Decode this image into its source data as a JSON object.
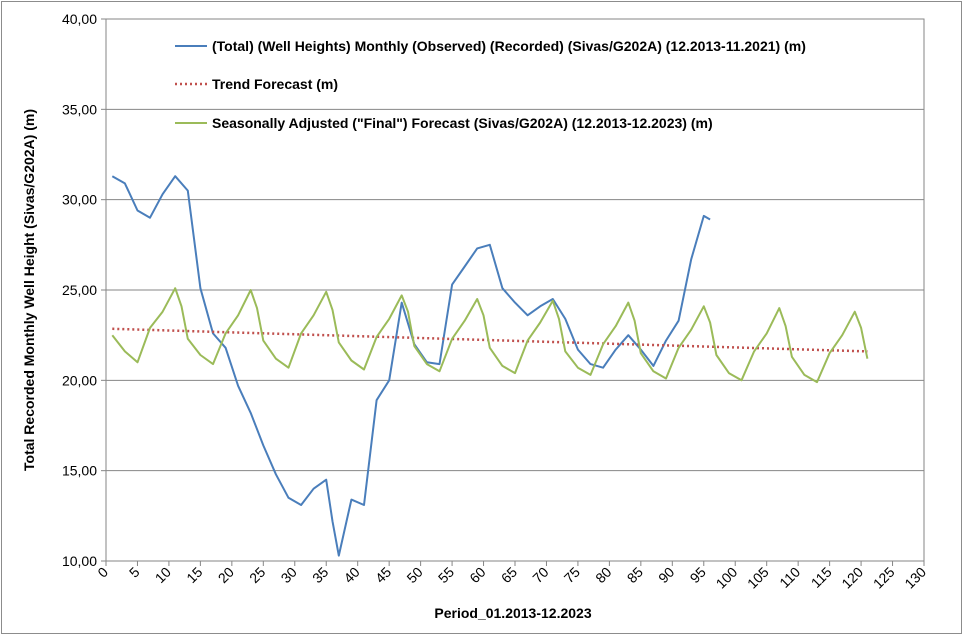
{
  "chart_data": {
    "type": "line",
    "title": "",
    "xlabel": "Period_01.2013-12.2023",
    "ylabel": "Total Recorded Monthly Well Height (Sivas/G202A) (m)",
    "xlim": [
      0,
      130
    ],
    "ylim": [
      10,
      40
    ],
    "x_ticks": [
      "0",
      "5",
      "10",
      "15",
      "20",
      "25",
      "30",
      "35",
      "40",
      "45",
      "50",
      "55",
      "60",
      "65",
      "70",
      "75",
      "80",
      "85",
      "90",
      "95",
      "100",
      "105",
      "110",
      "115",
      "120",
      "125",
      "130"
    ],
    "y_ticks": [
      "10,00",
      "15,00",
      "20,00",
      "25,00",
      "30,00",
      "35,00",
      "40,00"
    ],
    "grid": "horizontal",
    "legend_position": "top-center",
    "series": [
      {
        "name": "(Total) (Well Heights) Monthly (Observed) (Recorded) (Sivas/G202A) (12.2013-11.2021) (m)",
        "color": "#4a7ebb",
        "style": "solid",
        "x": [
          1,
          3,
          5,
          7,
          9,
          11,
          13,
          14,
          15,
          17,
          19,
          21,
          23,
          25,
          27,
          29,
          31,
          33,
          35,
          36,
          37,
          39,
          41,
          43,
          45,
          47,
          49,
          51,
          53,
          55,
          57,
          59,
          61,
          63,
          65,
          67,
          69,
          71,
          73,
          75,
          77,
          79,
          81,
          83,
          85,
          87,
          89,
          91,
          93,
          95,
          96
        ],
        "values": [
          31.3,
          30.9,
          29.4,
          29.0,
          30.3,
          31.3,
          30.5,
          27.8,
          25.1,
          22.6,
          21.8,
          19.7,
          18.2,
          16.4,
          14.8,
          13.5,
          13.1,
          14.0,
          14.5,
          12.2,
          10.3,
          13.4,
          13.1,
          18.9,
          20.0,
          24.3,
          22.0,
          21.0,
          20.9,
          25.3,
          26.3,
          27.3,
          27.5,
          25.1,
          24.3,
          23.6,
          24.1,
          24.5,
          23.4,
          21.7,
          20.9,
          20.7,
          21.7,
          22.5,
          21.7,
          20.8,
          22.2,
          23.3,
          26.7,
          29.1,
          28.9
        ]
      },
      {
        "name": "Trend Forecast (m)",
        "color": "#c0504d",
        "style": "dotted",
        "x": [
          1,
          121
        ],
        "values": [
          22.85,
          21.6
        ]
      },
      {
        "name": "Seasonally Adjusted (\"Final\") Forecast (Sivas/G202A) (12.2013-12.2023) (m)",
        "color": "#9bbb59",
        "style": "solid",
        "x": [
          1,
          3,
          5,
          7,
          9,
          11,
          12,
          13,
          15,
          17,
          19,
          21,
          23,
          24,
          25,
          27,
          29,
          31,
          33,
          35,
          36,
          37,
          39,
          41,
          43,
          45,
          47,
          48,
          49,
          51,
          53,
          55,
          57,
          59,
          60,
          61,
          63,
          65,
          67,
          69,
          71,
          72,
          73,
          75,
          77,
          79,
          81,
          83,
          84,
          85,
          87,
          89,
          91,
          93,
          95,
          96,
          97,
          99,
          101,
          103,
          105,
          107,
          108,
          109,
          111,
          113,
          115,
          117,
          119,
          120,
          121
        ],
        "values": [
          22.5,
          21.6,
          21.0,
          22.9,
          23.8,
          25.1,
          24.1,
          22.3,
          21.4,
          20.9,
          22.6,
          23.6,
          25.0,
          24.0,
          22.2,
          21.2,
          20.7,
          22.6,
          23.6,
          24.9,
          23.9,
          22.1,
          21.1,
          20.6,
          22.4,
          23.4,
          24.7,
          23.8,
          21.9,
          20.9,
          20.5,
          22.3,
          23.3,
          24.5,
          23.6,
          21.8,
          20.8,
          20.4,
          22.2,
          23.2,
          24.4,
          23.4,
          21.6,
          20.7,
          20.3,
          22.0,
          23.0,
          24.3,
          23.3,
          21.5,
          20.5,
          20.1,
          21.8,
          22.8,
          24.1,
          23.2,
          21.4,
          20.4,
          20.0,
          21.6,
          22.6,
          24.0,
          23.0,
          21.3,
          20.3,
          19.9,
          21.5,
          22.5,
          23.8,
          22.9,
          21.2
        ]
      }
    ]
  }
}
